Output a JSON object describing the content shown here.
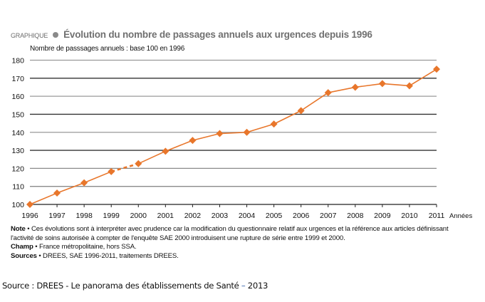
{
  "header": {
    "kicker": "GRAPHIQUE",
    "title": "Évolution du nombre de passages annuels aux urgences depuis 1996"
  },
  "chart_data": {
    "type": "line",
    "title": "Évolution du nombre de passages annuels aux urgences depuis 1996",
    "ylabel": "Nombre de passsages annuels : base 100 en 1996",
    "xlabel": "Années",
    "ylim": [
      100,
      180
    ],
    "yticks": [
      100,
      110,
      120,
      130,
      140,
      150,
      160,
      170,
      180
    ],
    "grid": true,
    "legend": "none",
    "x": [
      "1996",
      "1997",
      "1998",
      "1999",
      "2000",
      "2001",
      "2002",
      "2003",
      "2004",
      "2005",
      "2006",
      "2007",
      "2008",
      "2009",
      "2010",
      "2011"
    ],
    "series": [
      {
        "name": "Nombre de passages annuels (base 100 en 1996)",
        "color": "#E8762B",
        "values": [
          100,
          106.3,
          112,
          118.2,
          122.6,
          129.5,
          135.5,
          139.3,
          140,
          144.6,
          152,
          162,
          165,
          167,
          165.8,
          175
        ],
        "dashed_segments": [
          [
            "1999",
            "2000"
          ]
        ]
      }
    ]
  },
  "notes": {
    "note_label": "Note",
    "note_text_1": " • Ces évolutions sont à interpréter avec prudence car la modification du questionnaire relatif aux urgences et la référence aux articles définissant",
    "note_text_2": "l'activité de soins autorisée à compter de l'enquête SAE 2000 introduisent une rupture de série entre 1999 et 2000.",
    "champ_label": "Champ",
    "champ_text": " • France métropolitaine, hors SSA.",
    "sources_label": "Sources",
    "sources_text": " • DREES, SAE 1996-2011, traitements DREES."
  },
  "footer": {
    "source_text": "Source : DREES - Le panorama des établissements de Santé ",
    "dash": "–",
    "year": " 2013"
  }
}
